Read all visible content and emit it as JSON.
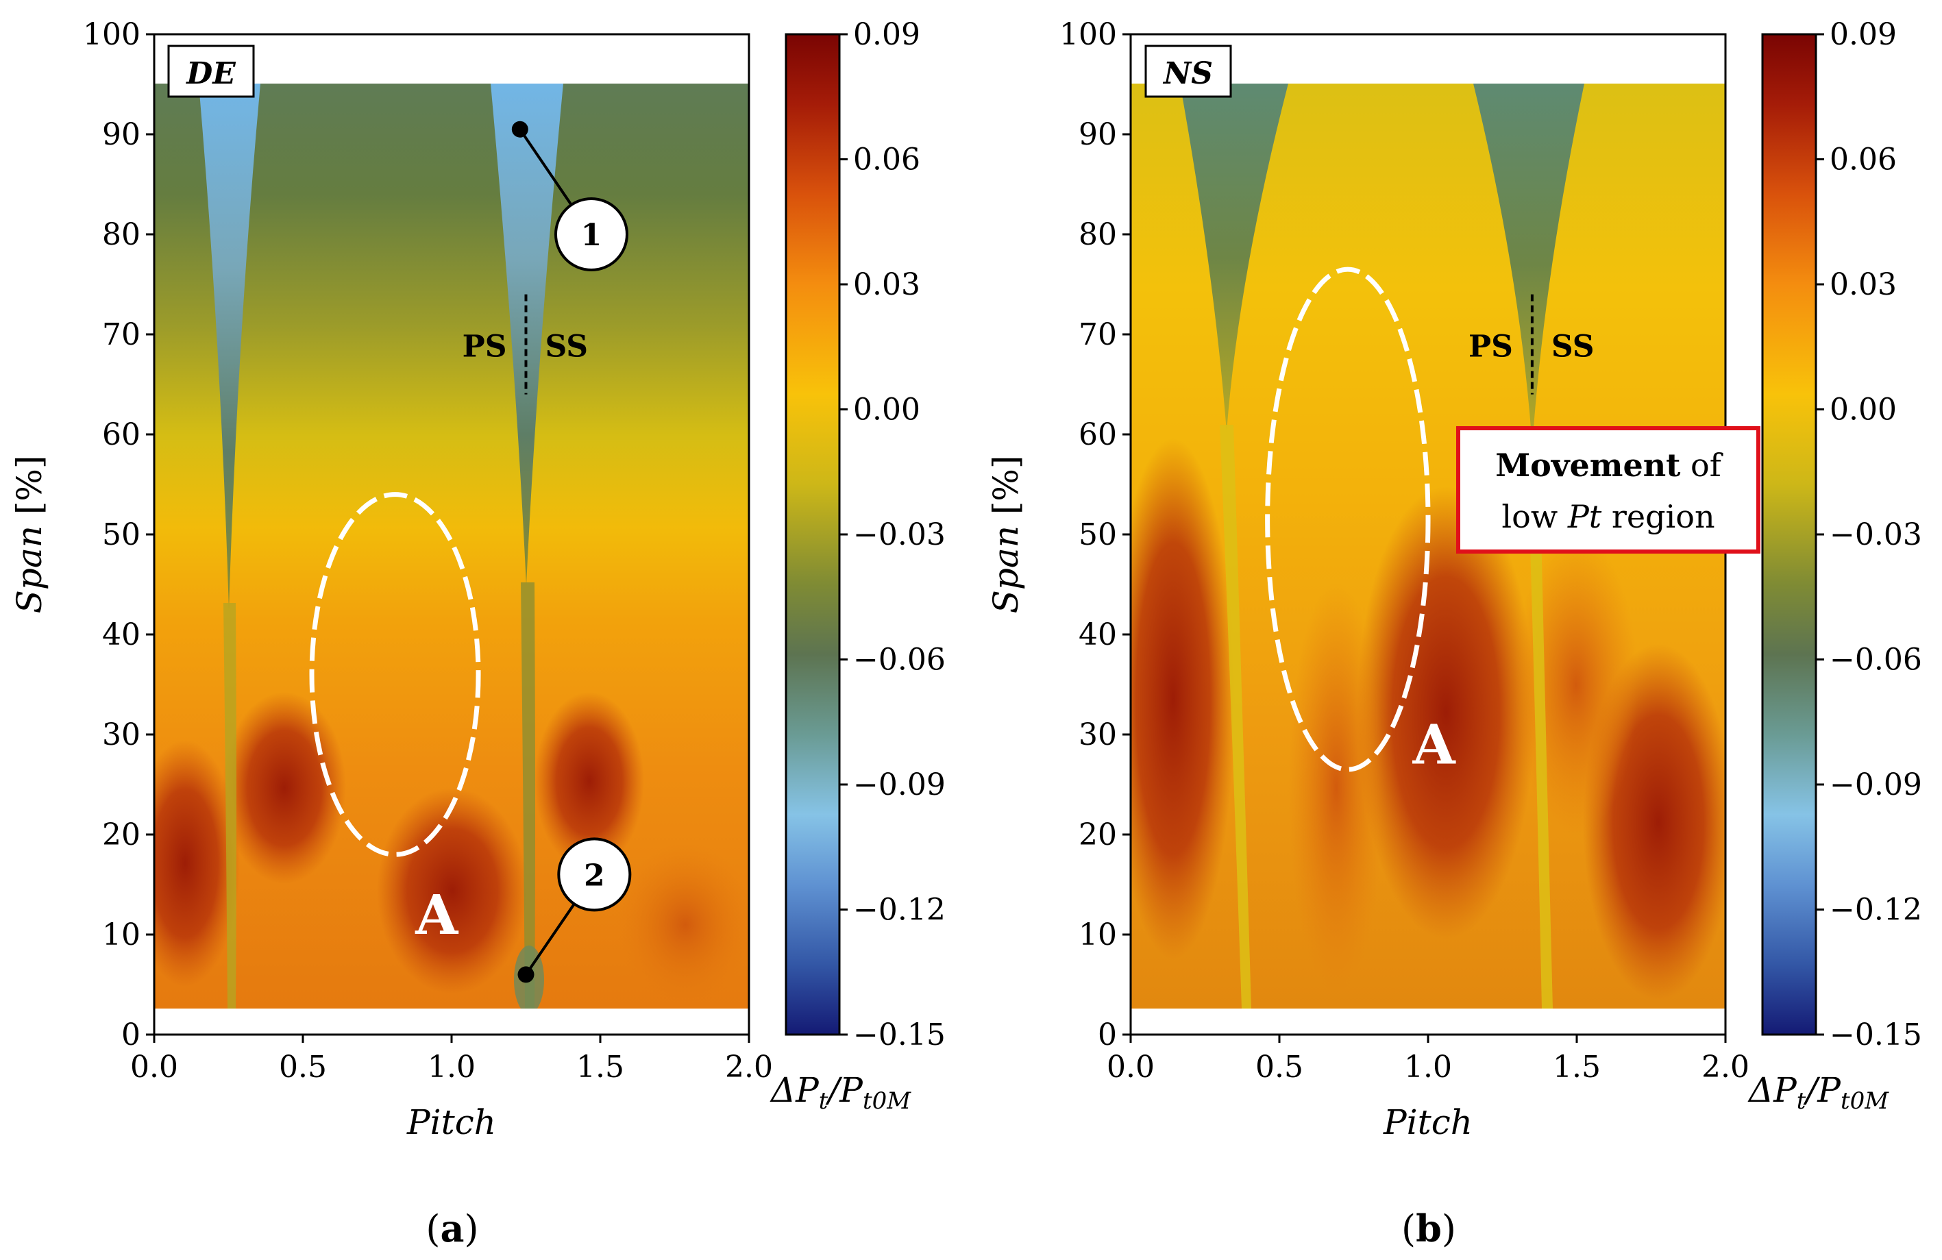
{
  "chart_data": [
    {
      "type": "heatmap",
      "panel_tag": "DE",
      "caption_letter": "a",
      "xlabel": "Pitch",
      "ylabel": "Span",
      "ylabel_unit": "[%]",
      "xlim": [
        0.0,
        2.0
      ],
      "ylim": [
        0,
        100
      ],
      "x_ticks": [
        "0.0",
        "0.5",
        "1.0",
        "1.5",
        "2.0"
      ],
      "y_ticks": [
        "0",
        "10",
        "20",
        "30",
        "40",
        "50",
        "60",
        "70",
        "80",
        "90",
        "100"
      ],
      "data_span_range": [
        2.5,
        95
      ],
      "colorbar": {
        "label_main": "ΔP",
        "label_sub1": "t",
        "label_div": "/P",
        "label_sub2": "t0M",
        "range": [
          -0.15,
          0.09
        ],
        "ticks": [
          "0.09",
          "0.06",
          "0.03",
          "0.00",
          "−0.03",
          "−0.06",
          "−0.09",
          "−0.12",
          "−0.15"
        ]
      },
      "wakes": [
        {
          "pitch": 0.25,
          "top_span": 95,
          "tip_span": 44
        },
        {
          "pitch": 1.25,
          "top_span": 95,
          "tip_span": 40
        }
      ],
      "suction_pressure_line": {
        "pitch": 1.25,
        "span_from": 64,
        "span_to": 74,
        "left_label": "PS",
        "right_label": "SS"
      },
      "markers": [
        {
          "label": "1",
          "pitch": 1.23,
          "span": 90.5,
          "badge_pitch": 1.47,
          "badge_span": 80
        },
        {
          "label": "2",
          "pitch": 1.25,
          "span": 6,
          "badge_pitch": 1.48,
          "badge_span": 16
        }
      ],
      "ellipse": {
        "center_pitch": 0.81,
        "center_span": 36,
        "half_width_pitch": 0.28,
        "half_height_span": 18
      },
      "region_label": {
        "text": "A",
        "pitch": 0.95,
        "span": 12
      }
    },
    {
      "type": "heatmap",
      "panel_tag": "NS",
      "caption_letter": "b",
      "xlabel": "Pitch",
      "ylabel": "Span",
      "ylabel_unit": "[%]",
      "xlim": [
        0.0,
        2.0
      ],
      "ylim": [
        0,
        100
      ],
      "x_ticks": [
        "0.0",
        "0.5",
        "1.0",
        "1.5",
        "2.0"
      ],
      "y_ticks": [
        "0",
        "10",
        "20",
        "30",
        "40",
        "50",
        "60",
        "70",
        "80",
        "90",
        "100"
      ],
      "data_span_range": [
        2.5,
        95
      ],
      "colorbar": {
        "label_main": "ΔP",
        "label_sub1": "t",
        "label_div": "/P",
        "label_sub2": "t0M",
        "range": [
          -0.15,
          0.09
        ],
        "ticks": [
          "0.09",
          "0.06",
          "0.03",
          "0.00",
          "−0.03",
          "−0.06",
          "−0.09",
          "−0.12",
          "−0.15"
        ]
      },
      "wakes": [
        {
          "pitch": 0.37,
          "top_span": 95,
          "tip_span": 58
        },
        {
          "pitch": 1.35,
          "top_span": 95,
          "tip_span": 60
        }
      ],
      "suction_pressure_line": {
        "pitch": 1.35,
        "span_from": 64,
        "span_to": 74,
        "left_label": "PS",
        "right_label": "SS"
      },
      "ellipse": {
        "center_pitch": 0.73,
        "center_span": 51.5,
        "half_width_pitch": 0.27,
        "half_height_span": 25
      },
      "region_label": {
        "text": "A",
        "pitch": 1.02,
        "span": 29
      },
      "note_box": {
        "bold": "Movement",
        "line1_rest": " of",
        "line2_pre": "low ",
        "line2_ital": "Pt",
        "line2_post": " region"
      }
    }
  ]
}
